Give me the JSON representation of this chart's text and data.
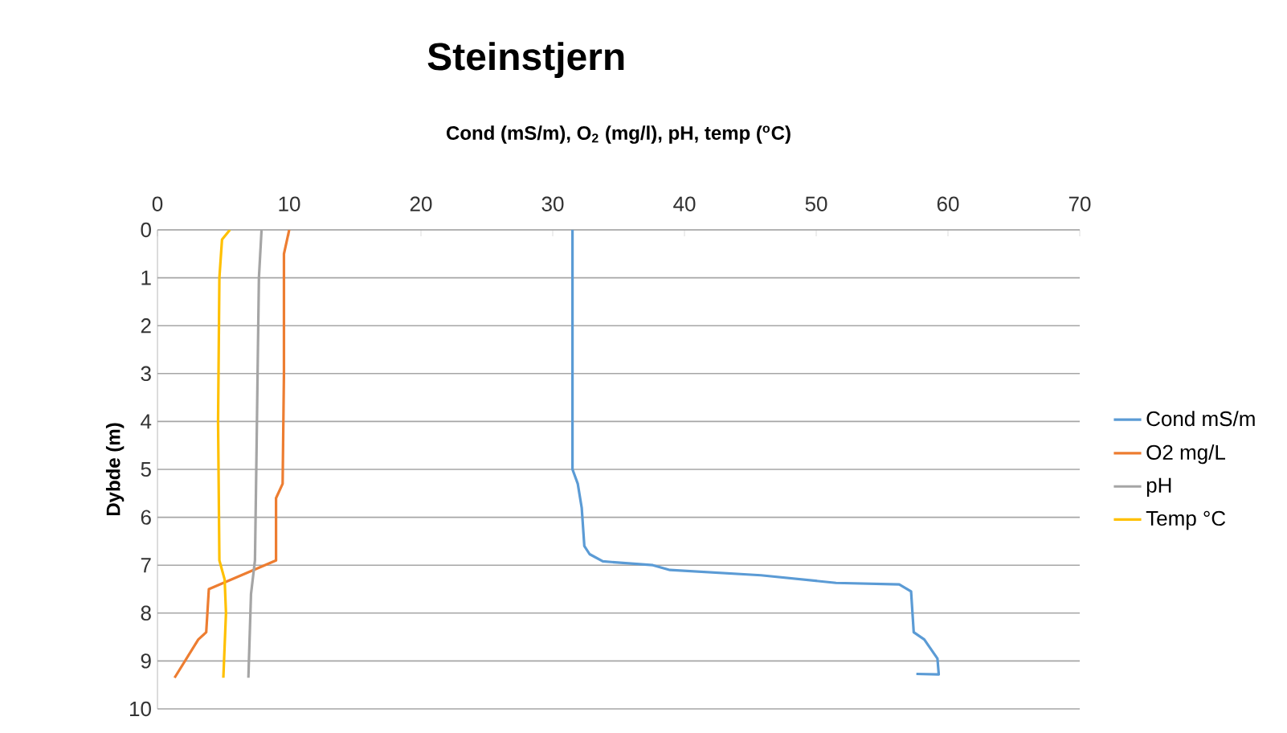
{
  "chart_data": {
    "type": "line",
    "title": "Steinstjern",
    "xlabel": "Cond (mS/m), O$_{2}$ (mg/l), pH, temp ($^{o}$C)",
    "ylabel": "Dybde (m)",
    "xlim": [
      0,
      70
    ],
    "xticks": [
      0,
      10,
      20,
      30,
      40,
      50,
      60,
      70
    ],
    "ylim": [
      10,
      0
    ],
    "yticks": [
      0,
      1,
      2,
      3,
      4,
      5,
      6,
      7,
      8,
      9,
      10
    ],
    "grid": "y",
    "legend": "right",
    "series": [
      {
        "name": "Cond mS/m",
        "color": "#5b9bd5",
        "x": [
          31.5,
          31.5,
          31.9,
          32.2,
          32.4,
          32.8,
          33.8,
          37.6,
          38.9,
          45.8,
          51.5,
          56.3,
          57.2,
          57.4,
          58.2,
          59.2,
          59.3,
          57.6
        ],
        "values": [
          0,
          5.0,
          5.3,
          5.8,
          6.6,
          6.77,
          6.92,
          7.0,
          7.1,
          7.21,
          7.37,
          7.4,
          7.55,
          8.4,
          8.55,
          8.95,
          9.28,
          9.27
        ]
      },
      {
        "name": "O2 mg/L",
        "color": "#ed7d31",
        "x": [
          10.0,
          9.6,
          9.6,
          9.5,
          9.0,
          9.0,
          3.9,
          3.7,
          3.1,
          1.3
        ],
        "values": [
          0,
          0.5,
          3.0,
          5.3,
          5.6,
          6.9,
          7.5,
          8.4,
          8.55,
          9.35
        ]
      },
      {
        "name": "pH",
        "color": "#a5a5a5",
        "x": [
          7.9,
          7.7,
          7.6,
          7.5,
          7.4,
          7.1,
          6.9
        ],
        "values": [
          0,
          1.0,
          3.0,
          5.0,
          6.9,
          7.6,
          9.35
        ]
      },
      {
        "name": "Temp °C",
        "color": "#ffc000",
        "x": [
          5.5,
          4.9,
          4.7,
          4.6,
          4.7,
          5.1,
          5.2,
          5.0
        ],
        "values": [
          0,
          0.2,
          1.0,
          4.0,
          6.9,
          7.3,
          8.0,
          9.35
        ]
      }
    ]
  }
}
